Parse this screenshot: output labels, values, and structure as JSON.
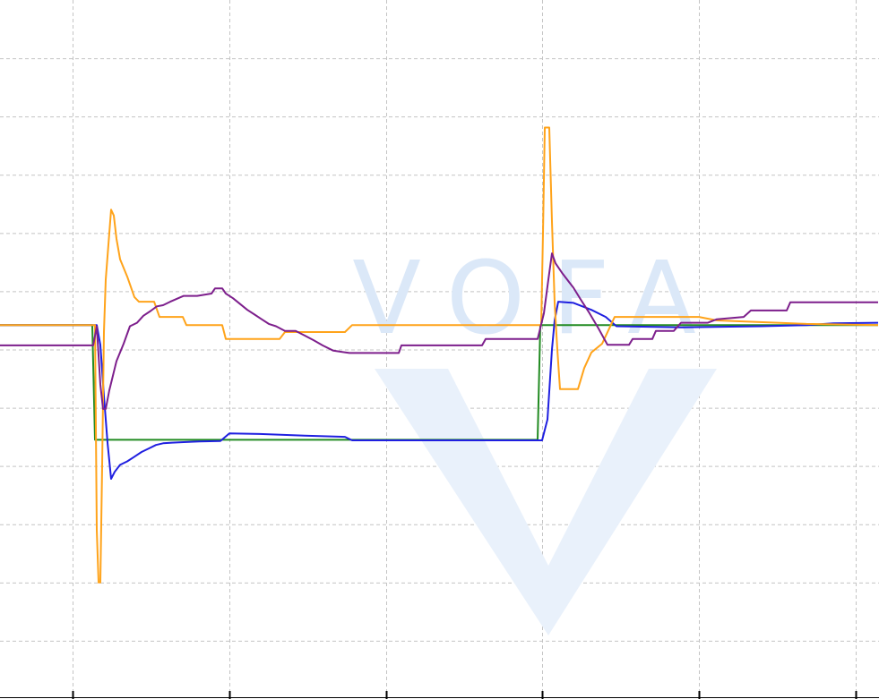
{
  "chart_data": {
    "type": "line",
    "title": "",
    "xlabel": "",
    "ylabel": "",
    "xlim": [
      0,
      980
    ],
    "ylim": [
      -200,
      1000
    ],
    "grid": true,
    "x_major_ticks": [
      81,
      256,
      431,
      605,
      780,
      955
    ],
    "y_gridlines": [
      900,
      800,
      700,
      600,
      500,
      400,
      300,
      200,
      100,
      0,
      -100
    ],
    "watermark": {
      "text": "VOFA",
      "color": "#dbe8f8"
    },
    "series": [
      {
        "color": "#228b22",
        "points": [
          [
            0,
            442
          ],
          [
            103,
            442
          ],
          [
            106,
            245
          ],
          [
            600,
            245
          ],
          [
            603,
            442
          ],
          [
            980,
            442
          ]
        ]
      },
      {
        "color": "#1f1fe0",
        "points": [
          [
            0,
            442
          ],
          [
            108,
            442
          ],
          [
            112,
            408
          ],
          [
            116,
            320
          ],
          [
            120,
            240
          ],
          [
            124,
            178
          ],
          [
            128,
            190
          ],
          [
            134,
            202
          ],
          [
            142,
            208
          ],
          [
            150,
            216
          ],
          [
            158,
            224
          ],
          [
            166,
            230
          ],
          [
            174,
            236
          ],
          [
            182,
            239
          ],
          [
            192,
            240
          ],
          [
            205,
            241
          ],
          [
            222,
            242
          ],
          [
            246,
            243
          ],
          [
            256,
            256
          ],
          [
            290,
            255
          ],
          [
            340,
            252
          ],
          [
            385,
            250
          ],
          [
            393,
            244
          ],
          [
            605,
            244
          ],
          [
            611,
            280
          ],
          [
            616,
            400
          ],
          [
            619,
            450
          ],
          [
            623,
            482
          ],
          [
            640,
            480
          ],
          [
            660,
            468
          ],
          [
            676,
            456
          ],
          [
            688,
            440
          ],
          [
            760,
            438
          ],
          [
            850,
            440
          ],
          [
            900,
            442
          ],
          [
            930,
            445
          ],
          [
            980,
            446
          ]
        ]
      },
      {
        "color": "#ffa31a",
        "points": [
          [
            0,
            442
          ],
          [
            106,
            442
          ],
          [
            108,
            90
          ],
          [
            110,
            0
          ],
          [
            112,
            0
          ],
          [
            114,
            200
          ],
          [
            116,
            430
          ],
          [
            118,
            520
          ],
          [
            121,
            580
          ],
          [
            124,
            640
          ],
          [
            127,
            630
          ],
          [
            130,
            590
          ],
          [
            134,
            555
          ],
          [
            138,
            540
          ],
          [
            142,
            525
          ],
          [
            150,
            490
          ],
          [
            155,
            482
          ],
          [
            172,
            482
          ],
          [
            178,
            456
          ],
          [
            204,
            456
          ],
          [
            208,
            442
          ],
          [
            248,
            442
          ],
          [
            252,
            418
          ],
          [
            312,
            418
          ],
          [
            318,
            430
          ],
          [
            385,
            430
          ],
          [
            393,
            442
          ],
          [
            604,
            442
          ],
          [
            606,
            600
          ],
          [
            608,
            781
          ],
          [
            613,
            781
          ],
          [
            616,
            620
          ],
          [
            619,
            480
          ],
          [
            622,
            400
          ],
          [
            625,
            332
          ],
          [
            645,
            332
          ],
          [
            652,
            368
          ],
          [
            660,
            395
          ],
          [
            672,
            410
          ],
          [
            686,
            456
          ],
          [
            780,
            456
          ],
          [
            800,
            450
          ],
          [
            900,
            444
          ],
          [
            980,
            442
          ]
        ]
      },
      {
        "color": "#7d1f8c",
        "points": [
          [
            0,
            407
          ],
          [
            104,
            407
          ],
          [
            108,
            440
          ],
          [
            112,
            340
          ],
          [
            115,
            298
          ],
          [
            118,
            298
          ],
          [
            122,
            330
          ],
          [
            130,
            380
          ],
          [
            138,
            410
          ],
          [
            145,
            440
          ],
          [
            153,
            446
          ],
          [
            160,
            458
          ],
          [
            168,
            466
          ],
          [
            175,
            474
          ],
          [
            182,
            476
          ],
          [
            190,
            482
          ],
          [
            205,
            492
          ],
          [
            220,
            492
          ],
          [
            236,
            496
          ],
          [
            240,
            505
          ],
          [
            248,
            505
          ],
          [
            252,
            496
          ],
          [
            260,
            488
          ],
          [
            268,
            478
          ],
          [
            276,
            468
          ],
          [
            284,
            460
          ],
          [
            292,
            452
          ],
          [
            300,
            444
          ],
          [
            308,
            440
          ],
          [
            318,
            432
          ],
          [
            330,
            432
          ],
          [
            340,
            424
          ],
          [
            350,
            416
          ],
          [
            360,
            407
          ],
          [
            372,
            398
          ],
          [
            390,
            394
          ],
          [
            445,
            394
          ],
          [
            448,
            407
          ],
          [
            538,
            407
          ],
          [
            542,
            418
          ],
          [
            600,
            418
          ],
          [
            607,
            462
          ],
          [
            612,
            520
          ],
          [
            616,
            565
          ],
          [
            620,
            548
          ],
          [
            628,
            530
          ],
          [
            640,
            506
          ],
          [
            648,
            486
          ],
          [
            658,
            462
          ],
          [
            668,
            436
          ],
          [
            678,
            408
          ],
          [
            702,
            408
          ],
          [
            706,
            418
          ],
          [
            728,
            418
          ],
          [
            732,
            432
          ],
          [
            752,
            432
          ],
          [
            760,
            446
          ],
          [
            790,
            446
          ],
          [
            800,
            452
          ],
          [
            830,
            456
          ],
          [
            838,
            467
          ],
          [
            878,
            467
          ],
          [
            882,
            481
          ],
          [
            980,
            481
          ]
        ]
      }
    ]
  }
}
